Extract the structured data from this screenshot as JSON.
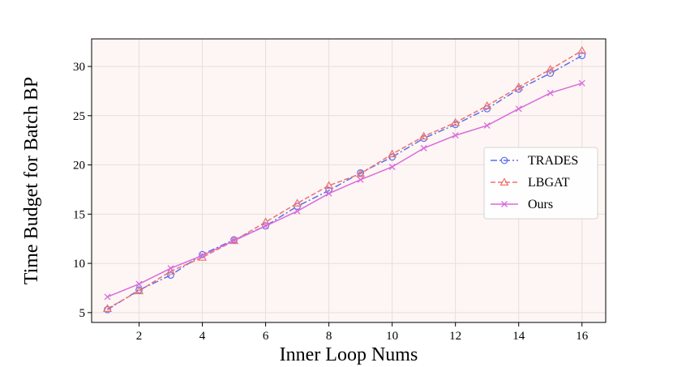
{
  "chart_data": {
    "type": "line",
    "title": "",
    "xlabel": "Inner Loop Nums",
    "ylabel": "Time Budget for Batch BP",
    "xlim": [
      0.5,
      16.75
    ],
    "ylim": [
      4.0,
      32.8
    ],
    "xticks": [
      2,
      4,
      6,
      8,
      10,
      12,
      14,
      16
    ],
    "yticks": [
      5,
      10,
      15,
      20,
      25,
      30
    ],
    "grid": true,
    "legend_position": "center-right",
    "x": [
      1,
      2,
      3,
      4,
      5,
      6,
      7,
      8,
      9,
      10,
      11,
      12,
      13,
      14,
      15,
      16
    ],
    "series": [
      {
        "name": "TRADES",
        "color": "#5b6ff0",
        "linestyle": "dashdot",
        "marker": "circle",
        "values": [
          5.3,
          7.3,
          8.8,
          10.9,
          12.4,
          13.8,
          15.8,
          17.4,
          19.2,
          20.8,
          22.7,
          24.1,
          25.7,
          27.7,
          29.3,
          31.1
        ]
      },
      {
        "name": "LBGAT",
        "color": "#f07070",
        "linestyle": "dashed",
        "marker": "triangle",
        "values": [
          5.4,
          7.2,
          9.2,
          10.6,
          12.3,
          14.2,
          16.1,
          17.9,
          19.1,
          21.1,
          22.9,
          24.3,
          26.0,
          27.9,
          29.7,
          31.6
        ]
      },
      {
        "name": "Ours",
        "color": "#d96bdb",
        "linestyle": "solid",
        "marker": "x",
        "values": [
          6.6,
          7.9,
          9.5,
          10.8,
          12.3,
          13.8,
          15.3,
          17.1,
          18.5,
          19.8,
          21.7,
          23.0,
          24.0,
          25.7,
          27.3,
          28.3
        ]
      }
    ]
  }
}
